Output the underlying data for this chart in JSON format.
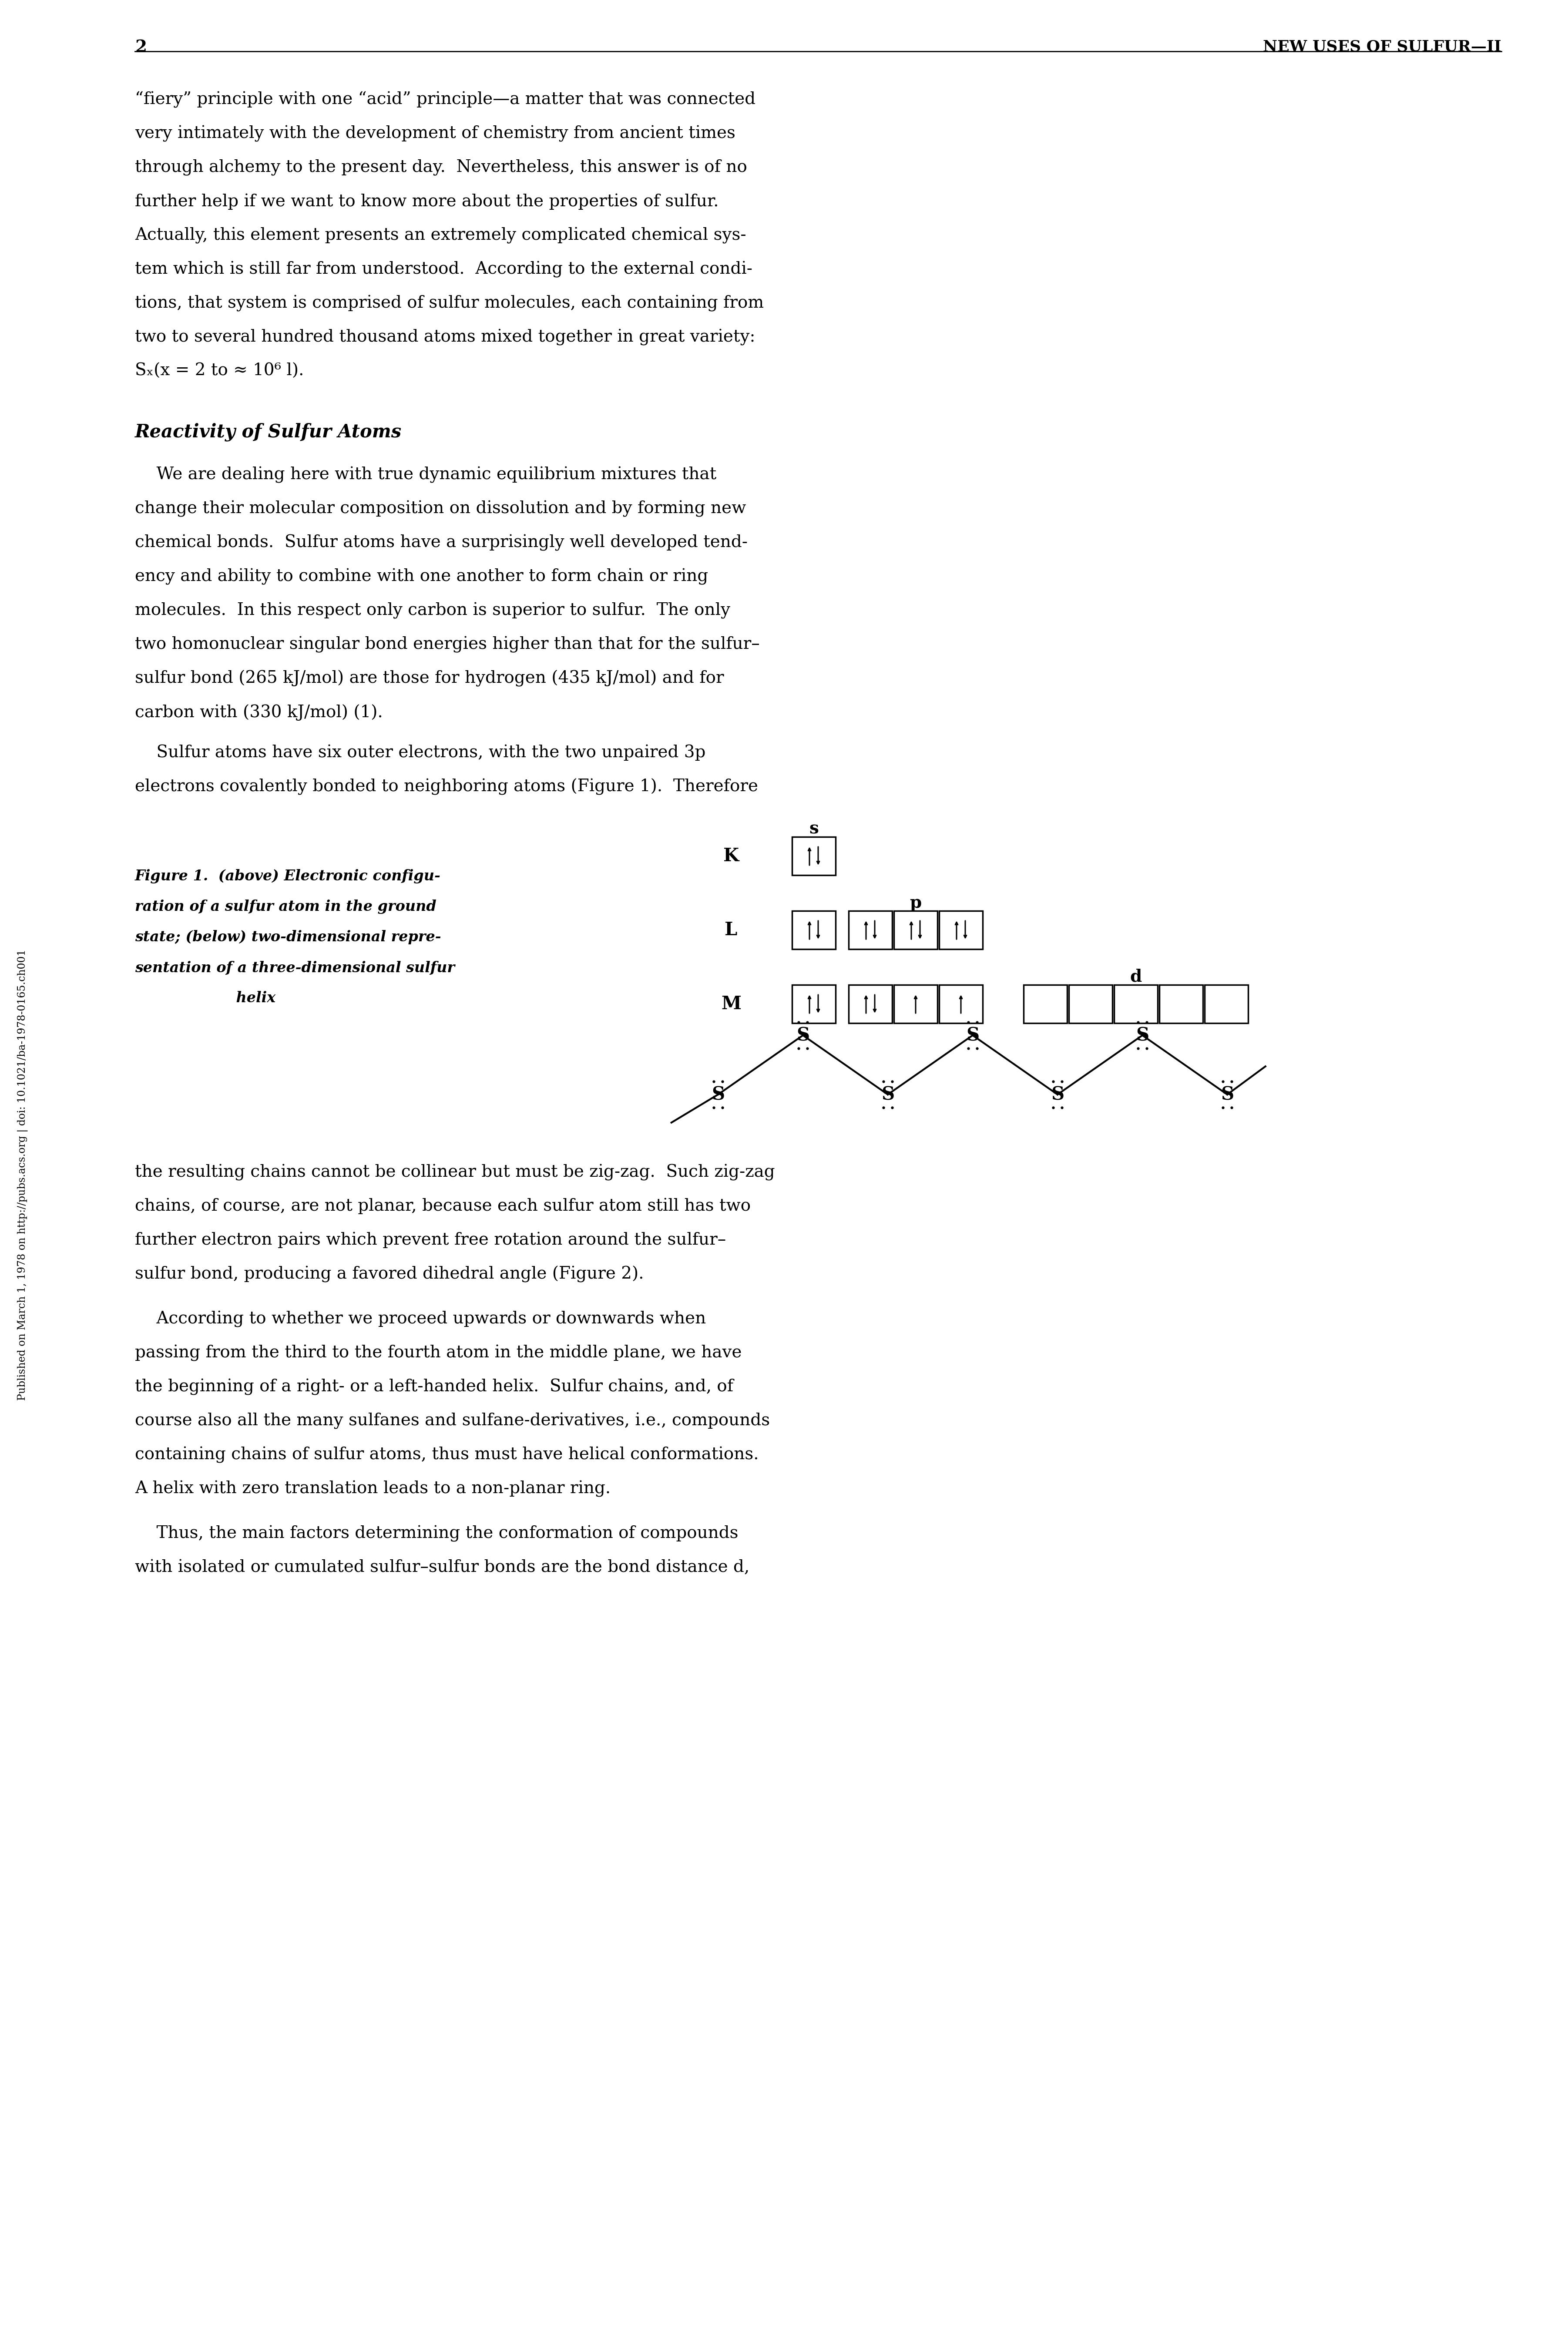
{
  "page_number": "2",
  "header_right": "NEW USES OF SULFUR—II",
  "sidebar_text": "Published on March 1, 1978 on http://pubs.acs.org | doi: 10.1021/ba-1978-0165.ch001",
  "bg_color": "#ffffff",
  "text_color": "#000000",
  "p1_lines": [
    "“fiery” principle with one “acid” principle—a matter that was connected",
    "very intimately with the development of chemistry from ancient times",
    "through alchemy to the present day.  Nevertheless, this answer is of no",
    "further help if we want to know more about the properties of sulfur.",
    "Actually, this element presents an extremely complicated chemical sys-",
    "tem which is still far from understood.  According to the external condi-",
    "tions, that system is comprised of sulfur molecules, each containing from",
    "two to several hundred thousand atoms mixed together in great variety:",
    "Sₓ(x = 2 to ≈ 10⁶ l)."
  ],
  "section_title": "Reactivity of Sulfur Atoms",
  "p2_lines": [
    "    We are dealing here with true dynamic equilibrium mixtures that",
    "change their molecular composition on dissolution and by forming new",
    "chemical bonds.  Sulfur atoms have a surprisingly well developed tend-",
    "ency and ability to combine with one another to form chain or ring",
    "molecules.  In this respect only carbon is superior to sulfur.  The only",
    "two homonuclear singular bond energies higher than that for the sulfur–",
    "sulfur bond (265 kJ/mol) are those for hydrogen (435 kJ/mol) and for",
    "carbon with (330 kJ/mol) (1)."
  ],
  "p3_lines": [
    "    Sulfur atoms have six outer electrons, with the two unpaired 3p",
    "electrons covalently bonded to neighboring atoms (Figure 1).  Therefore"
  ],
  "cap_lines": [
    "Figure 1.  (above) Electronic configu-",
    "ration of a sulfur atom in the ground",
    "state; (below) two-dimensional repre-",
    "sentation of a three-dimensional sulfur",
    "                    helix"
  ],
  "p4_lines": [
    "the resulting chains cannot be collinear but must be zig-zag.  Such zig-zag",
    "chains, of course, are not planar, because each sulfur atom still has two",
    "further electron pairs which prevent free rotation around the sulfur–",
    "sulfur bond, producing a favored dihedral angle (Figure 2)."
  ],
  "p5_lines": [
    "    According to whether we proceed upwards or downwards when",
    "passing from the third to the fourth atom in the middle plane, we have",
    "the beginning of a right- or a left-handed helix.  Sulfur chains, and, of",
    "course also all the many sulfanes and sulfane-derivatives, i.e., compounds",
    "containing chains of sulfur atoms, thus must have helical conformations.",
    "A helix with zero translation leads to a non-planar ring."
  ],
  "p6_lines": [
    "    Thus, the main factors determining the conformation of compounds",
    "with isolated or cumulated sulfur–sulfur bonds are the bond distance d,"
  ]
}
